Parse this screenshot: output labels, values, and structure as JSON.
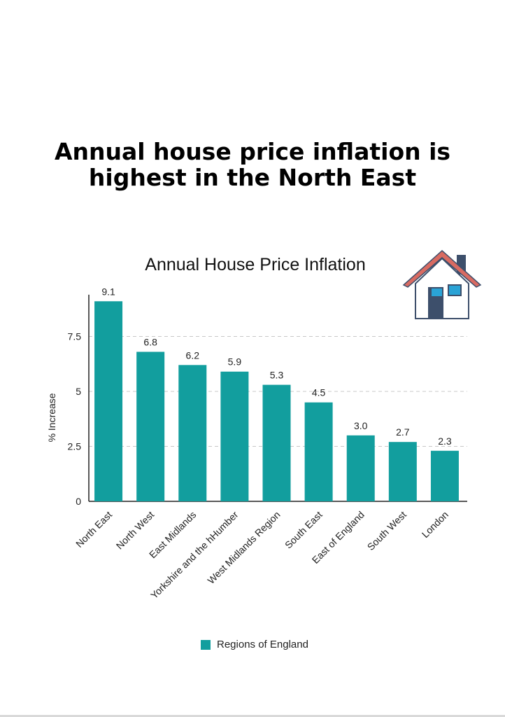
{
  "headline": {
    "line1": "Annual house price inflation is",
    "line2": "highest in the North East"
  },
  "colors": {
    "bar": "#129e9e",
    "house_roof": "#d96b62",
    "house_door": "#3d4f6b",
    "house_window": "#2aa3d6"
  },
  "icons": {
    "house": "house-icon"
  },
  "chart_data": {
    "type": "bar",
    "title": "Annual House Price Inflation",
    "xlabel": "",
    "ylabel": "% Increase",
    "ylim": [
      0,
      9.4
    ],
    "yticks": [
      0,
      2.5,
      5,
      7.5
    ],
    "ytick_labels": [
      "0",
      "2.5",
      "5",
      "7.5"
    ],
    "grid": "horizontal dashed",
    "legend_position": "bottom",
    "categories": [
      "North East",
      "North West",
      "East Midlands",
      "Yorkshire and the hHumber",
      "West Midlands Region",
      "South East",
      "East of England",
      "South West",
      "London"
    ],
    "series": [
      {
        "name": "Regions of England",
        "values": [
          9.1,
          6.8,
          6.2,
          5.9,
          5.3,
          4.5,
          3.0,
          2.7,
          2.3
        ],
        "labels": [
          "9.1",
          "6.8",
          "6.2",
          "5.9",
          "5.3",
          "4.5",
          "3.0",
          "2.7",
          "2.3"
        ]
      }
    ]
  }
}
